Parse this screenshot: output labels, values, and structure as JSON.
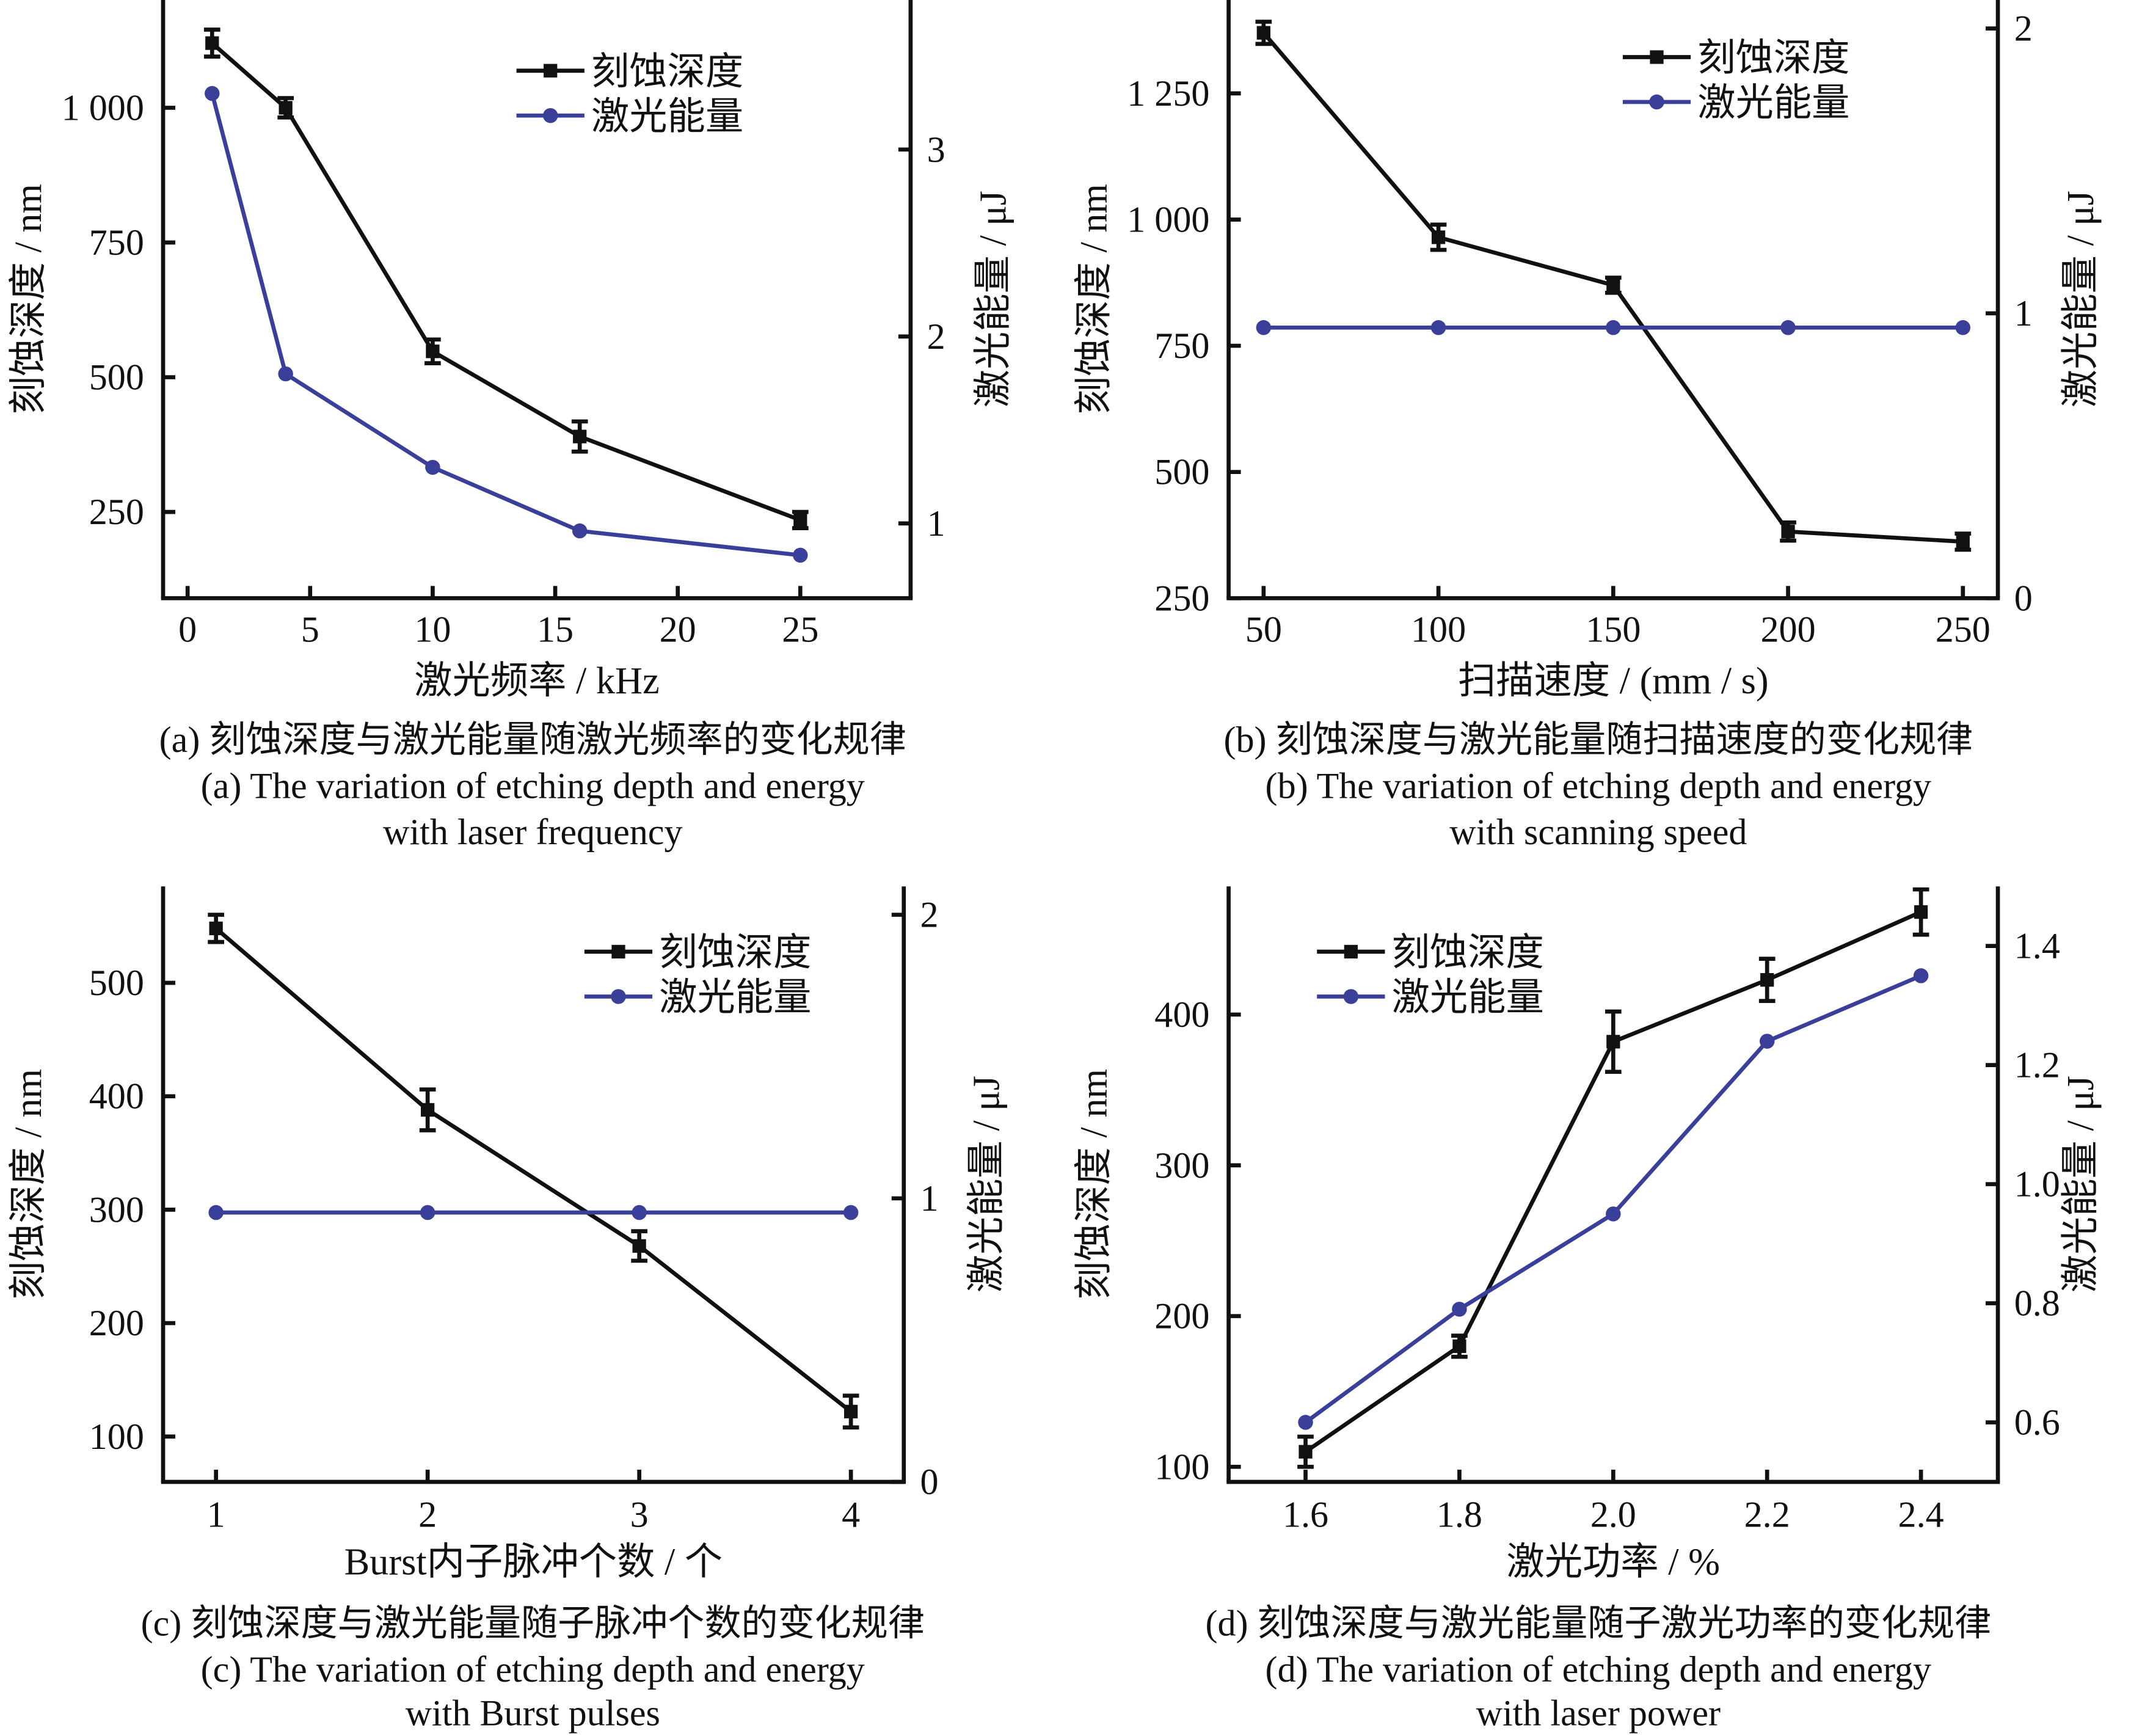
{
  "colors": {
    "depth": "#111111",
    "energy": "#3a3f9a"
  },
  "chart_data": [
    {
      "id": "a",
      "type": "line",
      "x": [
        1,
        4,
        10,
        16,
        25
      ],
      "xlabel": "激光频率 / kHz",
      "xticks": [
        0,
        5,
        10,
        15,
        20,
        25
      ],
      "xtick_labels": [
        "0",
        "5",
        "10",
        "15",
        "20",
        "25"
      ],
      "xlim": [
        -1,
        29.5
      ],
      "ylabel": "刻蚀深度 / nm",
      "yticks": [
        250,
        500,
        750,
        1000
      ],
      "ytick_labels": [
        "250",
        "500",
        "750",
        "1 000"
      ],
      "ylim": [
        90,
        1200
      ],
      "y2label": "激光能量 / μJ",
      "y2ticks": [
        1,
        2,
        3
      ],
      "y2tick_labels": [
        "1",
        "2",
        "3"
      ],
      "y2lim": [
        0.6,
        3.8
      ],
      "series": [
        {
          "name": "刻蚀深度",
          "axis": "left",
          "marker": "square",
          "values": [
            1120,
            1000,
            548,
            390,
            235
          ],
          "errors": [
            25,
            18,
            22,
            28,
            15
          ]
        },
        {
          "name": "激光能量",
          "axis": "right",
          "marker": "circle",
          "values": [
            3.3,
            1.8,
            1.3,
            0.96,
            0.83
          ]
        }
      ],
      "legend_position": "top-right",
      "caption_cn": "(a) 刻蚀深度与激光能量随激光频率的变化规律",
      "caption_en_1": "(a) The variation of etching depth and energy",
      "caption_en_2": "with laser frequency"
    },
    {
      "id": "b",
      "type": "line",
      "x": [
        50,
        100,
        150,
        200,
        250
      ],
      "xlabel": "扫描速度 / (mm / s)",
      "xticks": [
        50,
        100,
        150,
        200,
        250
      ],
      "xtick_labels": [
        "50",
        "100",
        "150",
        "200",
        "250"
      ],
      "xlim": [
        40,
        260
      ],
      "ylabel": "刻蚀深度 / nm",
      "yticks": [
        250,
        500,
        750,
        1000,
        1250
      ],
      "ytick_labels": [
        "250",
        "500",
        "750",
        "1 000",
        "1 250"
      ],
      "ylim": [
        250,
        1435
      ],
      "y2label": "激光能量 / μJ",
      "y2ticks": [
        0,
        1,
        2
      ],
      "y2tick_labels": [
        "0",
        "1",
        "2"
      ],
      "y2lim": [
        0,
        2.1
      ],
      "series": [
        {
          "name": "刻蚀深度",
          "axis": "left",
          "marker": "square",
          "values": [
            1370,
            965,
            870,
            382,
            362
          ],
          "errors": [
            22,
            25,
            15,
            18,
            16
          ]
        },
        {
          "name": "激光能量",
          "axis": "right",
          "marker": "circle",
          "values": [
            0.95,
            0.95,
            0.95,
            0.95,
            0.95
          ]
        }
      ],
      "legend_position": "top-right",
      "caption_cn": "(b) 刻蚀深度与激光能量随扫描速度的变化规律",
      "caption_en_1": "(b) The variation of etching depth and energy",
      "caption_en_2": "with scanning speed"
    },
    {
      "id": "c",
      "type": "line",
      "x": [
        1,
        2,
        3,
        4
      ],
      "xlabel": "Burst内子脉冲个数 / 个",
      "xticks": [
        1,
        2,
        3,
        4
      ],
      "xtick_labels": [
        "1",
        "2",
        "3",
        "4"
      ],
      "xlim": [
        0.75,
        4.25
      ],
      "ylabel": "刻蚀深度 / nm",
      "yticks": [
        100,
        200,
        300,
        400,
        500
      ],
      "ytick_labels": [
        "100",
        "200",
        "300",
        "400",
        "500"
      ],
      "ylim": [
        60,
        585
      ],
      "y2label": "激光能量 / μJ",
      "y2ticks": [
        0,
        1,
        2
      ],
      "y2tick_labels": [
        "0",
        "1",
        "2"
      ],
      "y2lim": [
        0,
        2.1
      ],
      "series": [
        {
          "name": "刻蚀深度",
          "axis": "left",
          "marker": "square",
          "values": [
            548,
            388,
            268,
            122
          ],
          "errors": [
            12,
            18,
            13,
            14
          ]
        },
        {
          "name": "激光能量",
          "axis": "right",
          "marker": "circle",
          "values": [
            0.95,
            0.95,
            0.95,
            0.95
          ]
        }
      ],
      "legend_position": "top-right",
      "caption_cn": "(c) 刻蚀深度与激光能量随子脉冲个数的变化规律",
      "caption_en_1": "(c) The variation of etching depth and energy",
      "caption_en_2": "with Burst pulses"
    },
    {
      "id": "d",
      "type": "line",
      "x": [
        1.6,
        1.8,
        2.0,
        2.2,
        2.4
      ],
      "xlabel": "激光功率 / %",
      "xticks": [
        1.6,
        1.8,
        2.0,
        2.2,
        2.4
      ],
      "xtick_labels": [
        "1.6",
        "1.8",
        "2.0",
        "2.2",
        "2.4"
      ],
      "xlim": [
        1.5,
        2.5
      ],
      "ylabel": "刻蚀深度 / nm",
      "yticks": [
        100,
        200,
        300,
        400
      ],
      "ytick_labels": [
        "100",
        "200",
        "300",
        "400"
      ],
      "ylim": [
        90,
        485
      ],
      "y2label": "激光能量 / μJ",
      "y2ticks": [
        0.6,
        0.8,
        1.0,
        1.2,
        1.4
      ],
      "y2tick_labels": [
        "0.6",
        "0.8",
        "1.0",
        "1.2",
        "1.4"
      ],
      "y2lim": [
        0.5,
        1.5
      ],
      "series": [
        {
          "name": "刻蚀深度",
          "axis": "left",
          "marker": "square",
          "values": [
            110,
            180,
            382,
            423,
            468
          ],
          "errors": [
            10,
            7,
            20,
            14,
            15
          ]
        },
        {
          "name": "激光能量",
          "axis": "right",
          "marker": "circle",
          "values": [
            0.6,
            0.79,
            0.95,
            1.24,
            1.35
          ]
        }
      ],
      "legend_position": "top-left",
      "caption_cn": "(d) 刻蚀深度与激光能量随子激光功率的变化规律",
      "caption_en_1": "(d) The variation of etching depth and energy",
      "caption_en_2": "with laser power"
    }
  ]
}
